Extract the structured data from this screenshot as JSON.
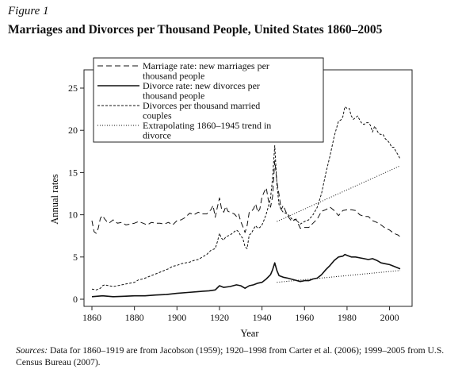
{
  "figure_label": "Figure 1",
  "title": "Marriages and Divorces per Thousand People, United States 1860–2005",
  "sources_label": "Sources:",
  "sources_text": " Data for 1860–1919 are from Jacobson (1959); 1920–1998 from Carter et al. (2006); 1999–2005 from U.S. Census Bureau (2007).",
  "chart_data": {
    "type": "line",
    "title": "Marriages and Divorces per Thousand People, United States 1860–2005",
    "xlabel": "Year",
    "ylabel": "Annual rates",
    "xlim": [
      1860,
      2005
    ],
    "ylim": [
      0,
      25
    ],
    "x_ticks": [
      1860,
      1880,
      1900,
      1920,
      1940,
      1960,
      1980,
      2000
    ],
    "y_ticks": [
      0,
      5,
      10,
      15,
      20,
      25
    ],
    "grid": false,
    "legend_position": "top-center",
    "series": [
      {
        "name": "Marriage rate: new marriages per thousand people",
        "style": "long-dash",
        "x": [
          1860,
          1861,
          1862,
          1863,
          1864,
          1865,
          1866,
          1867,
          1868,
          1870,
          1872,
          1874,
          1876,
          1878,
          1880,
          1882,
          1884,
          1886,
          1888,
          1890,
          1892,
          1894,
          1896,
          1898,
          1900,
          1902,
          1904,
          1906,
          1908,
          1910,
          1912,
          1914,
          1916,
          1917,
          1918,
          1919,
          1920,
          1921,
          1922,
          1923,
          1924,
          1925,
          1926,
          1927,
          1928,
          1929,
          1930,
          1931,
          1932,
          1933,
          1934,
          1935,
          1936,
          1937,
          1938,
          1939,
          1940,
          1941,
          1942,
          1943,
          1944,
          1945,
          1946,
          1947,
          1948,
          1949,
          1950,
          1952,
          1954,
          1956,
          1958,
          1960,
          1962,
          1964,
          1966,
          1968,
          1970,
          1972,
          1974,
          1976,
          1978,
          1980,
          1982,
          1984,
          1986,
          1988,
          1990,
          1992,
          1994,
          1996,
          1998,
          2000,
          2002,
          2004,
          2005
        ],
        "values": [
          9.3,
          8.0,
          7.8,
          8.4,
          9.6,
          9.9,
          9.5,
          9.2,
          9.0,
          9.4,
          9.0,
          9.1,
          8.8,
          8.9,
          9.0,
          9.2,
          9.0,
          8.8,
          9.1,
          9.0,
          9.0,
          8.9,
          9.1,
          8.8,
          9.3,
          9.4,
          9.7,
          10.2,
          10.0,
          10.3,
          10.1,
          10.1,
          10.6,
          11.1,
          9.7,
          10.9,
          12.0,
          10.7,
          10.3,
          11.0,
          10.4,
          10.3,
          10.2,
          10.1,
          9.8,
          10.1,
          9.2,
          8.6,
          7.9,
          8.7,
          10.3,
          10.4,
          10.7,
          11.3,
          10.3,
          10.7,
          12.1,
          12.7,
          13.2,
          11.7,
          10.9,
          12.2,
          16.4,
          13.9,
          12.4,
          10.6,
          11.1,
          9.9,
          9.2,
          9.5,
          8.4,
          8.5,
          8.5,
          9.0,
          9.5,
          10.4,
          10.6,
          10.9,
          10.5,
          9.9,
          10.5,
          10.6,
          10.6,
          10.5,
          10.0,
          9.8,
          9.8,
          9.3,
          9.1,
          8.8,
          8.4,
          8.2,
          7.8,
          7.6,
          7.4
        ]
      },
      {
        "name": "Divorce rate: new divorces per thousand people",
        "style": "solid",
        "x": [
          1860,
          1865,
          1870,
          1875,
          1880,
          1885,
          1890,
          1895,
          1900,
          1905,
          1910,
          1915,
          1918,
          1920,
          1922,
          1925,
          1928,
          1930,
          1932,
          1934,
          1936,
          1938,
          1940,
          1942,
          1944,
          1945,
          1946,
          1947,
          1948,
          1950,
          1952,
          1955,
          1958,
          1960,
          1962,
          1964,
          1966,
          1968,
          1970,
          1972,
          1974,
          1976,
          1978,
          1979,
          1980,
          1982,
          1984,
          1986,
          1988,
          1990,
          1992,
          1994,
          1996,
          1998,
          2000,
          2002,
          2004,
          2005
        ],
        "values": [
          0.3,
          0.4,
          0.3,
          0.35,
          0.4,
          0.4,
          0.5,
          0.55,
          0.7,
          0.8,
          0.9,
          1.0,
          1.1,
          1.6,
          1.4,
          1.5,
          1.7,
          1.6,
          1.3,
          1.6,
          1.7,
          1.9,
          2.0,
          2.4,
          2.9,
          3.5,
          4.3,
          3.4,
          2.8,
          2.6,
          2.5,
          2.3,
          2.1,
          2.2,
          2.2,
          2.4,
          2.5,
          2.9,
          3.5,
          4.0,
          4.6,
          5.0,
          5.1,
          5.3,
          5.2,
          5.0,
          5.0,
          4.9,
          4.8,
          4.7,
          4.8,
          4.6,
          4.3,
          4.2,
          4.1,
          3.9,
          3.7,
          3.6
        ]
      },
      {
        "name": "Divorces per thousand married couples",
        "style": "short-dash",
        "x": [
          1860,
          1862,
          1864,
          1865,
          1866,
          1868,
          1870,
          1872,
          1874,
          1876,
          1878,
          1880,
          1882,
          1884,
          1886,
          1888,
          1890,
          1892,
          1894,
          1896,
          1898,
          1900,
          1902,
          1904,
          1906,
          1908,
          1910,
          1912,
          1914,
          1916,
          1918,
          1919,
          1920,
          1921,
          1922,
          1923,
          1924,
          1925,
          1926,
          1927,
          1928,
          1929,
          1930,
          1931,
          1932,
          1933,
          1934,
          1935,
          1936,
          1937,
          1938,
          1939,
          1940,
          1941,
          1942,
          1943,
          1944,
          1945,
          1946,
          1947,
          1948,
          1949,
          1950,
          1952,
          1954,
          1956,
          1958,
          1960,
          1962,
          1964,
          1966,
          1968,
          1970,
          1972,
          1974,
          1976,
          1977,
          1978,
          1979,
          1980,
          1981,
          1982,
          1983,
          1984,
          1985,
          1986,
          1987,
          1988,
          1989,
          1990,
          1991,
          1992,
          1993,
          1994,
          1995,
          1996,
          1997,
          1998,
          1999,
          2000,
          2001,
          2002,
          2003,
          2004,
          2005
        ],
        "values": [
          1.2,
          1.1,
          1.3,
          1.6,
          1.7,
          1.6,
          1.5,
          1.6,
          1.7,
          1.8,
          1.9,
          2.0,
          2.3,
          2.4,
          2.6,
          2.8,
          3.0,
          3.2,
          3.4,
          3.6,
          3.9,
          4.0,
          4.2,
          4.3,
          4.4,
          4.6,
          4.7,
          5.0,
          5.3,
          5.8,
          6.0,
          6.8,
          7.8,
          7.2,
          7.0,
          7.4,
          7.5,
          7.6,
          7.8,
          8.0,
          8.2,
          8.0,
          7.5,
          7.2,
          6.2,
          6.0,
          7.6,
          7.8,
          8.3,
          8.7,
          8.4,
          8.5,
          8.8,
          9.4,
          10.1,
          11.0,
          12.0,
          14.4,
          18.2,
          13.6,
          11.2,
          10.6,
          10.3,
          10.1,
          9.5,
          9.4,
          8.9,
          9.2,
          9.4,
          10.0,
          10.9,
          12.5,
          14.9,
          17.0,
          19.3,
          21.1,
          21.2,
          21.6,
          22.8,
          22.6,
          22.6,
          21.7,
          21.3,
          21.5,
          21.7,
          21.2,
          20.8,
          20.7,
          20.9,
          20.9,
          20.6,
          19.8,
          20.5,
          20.0,
          19.6,
          19.5,
          19.5,
          19.0,
          18.8,
          18.5,
          18.0,
          18.0,
          17.5,
          17.1,
          16.6
        ]
      },
      {
        "name": "Extrapolating 1860–1945 trend in divorce",
        "style": "dotted",
        "segments": [
          {
            "x": [
              1947,
              2005
            ],
            "values": [
              9.2,
              15.8
            ]
          },
          {
            "x": [
              1947,
              2005
            ],
            "values": [
              2.0,
              3.4
            ]
          }
        ]
      }
    ]
  }
}
